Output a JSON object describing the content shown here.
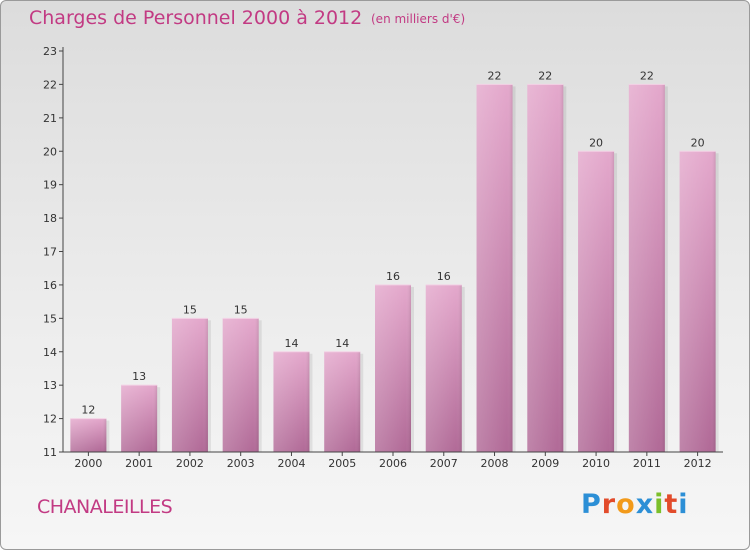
{
  "header": {
    "title": "Charges de Personnel 2000 à 2012",
    "subtitle": "(en milliers d'€)"
  },
  "footer": {
    "commune": "CHANALEILLES",
    "logo": {
      "letters": [
        "P",
        "r",
        "o",
        "x",
        "i",
        "t",
        "i"
      ],
      "colors": [
        "#2c8fd6",
        "#e24b2b",
        "#f29a1a",
        "#2c8fd6",
        "#7bbf2a",
        "#e24b2b",
        "#2c8fd6"
      ]
    }
  },
  "chart_data": {
    "type": "bar",
    "title": "Charges de Personnel 2000 à 2012",
    "subtitle": "(en milliers d'€)",
    "categories": [
      "2000",
      "2001",
      "2002",
      "2003",
      "2004",
      "2005",
      "2006",
      "2007",
      "2008",
      "2009",
      "2010",
      "2011",
      "2012"
    ],
    "values": [
      12,
      13,
      15,
      15,
      14,
      14,
      16,
      16,
      22,
      22,
      20,
      22,
      20
    ],
    "data_labels": [
      "12",
      "13",
      "15",
      "15",
      "14",
      "14",
      "16",
      "16",
      "22",
      "22",
      "20",
      "22",
      "20"
    ],
    "ylim": [
      11,
      23
    ],
    "yticks": [
      11,
      12,
      13,
      14,
      15,
      16,
      17,
      18,
      19,
      20,
      21,
      22,
      23
    ],
    "grid": false,
    "colors": {
      "bar_top": "#e4a8cc",
      "bar_bottom": "#b16a97",
      "accent": "#c23a83"
    }
  }
}
